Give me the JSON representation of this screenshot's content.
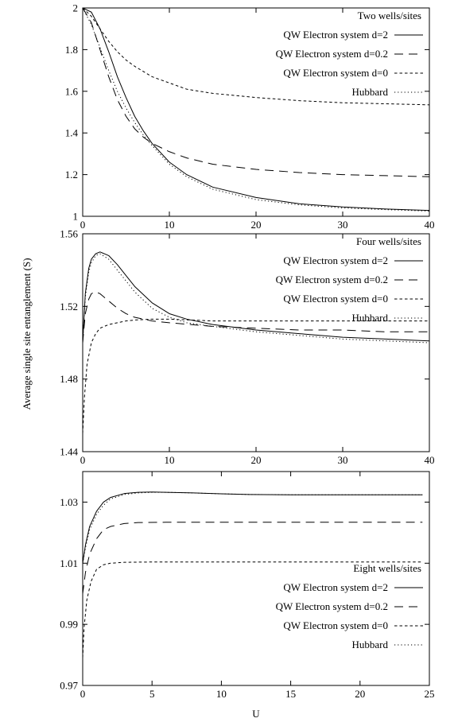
{
  "figure": {
    "ylabel": "Average single site entanglement (S)",
    "xlabel": "U"
  },
  "chart_data": [
    {
      "type": "line",
      "title": "Two wells/sites",
      "xlim": [
        0,
        40
      ],
      "ylim": [
        1,
        2
      ],
      "xticks": [
        0,
        10,
        20,
        30,
        40
      ],
      "yticks": [
        1,
        1.2,
        1.4,
        1.6,
        1.8,
        2
      ],
      "ytick_labels": [
        "1",
        "1.2",
        "1.4",
        "1.6",
        "1.8",
        "2"
      ],
      "legend_position": "top-right",
      "series": [
        {
          "name": "QW Electron system d=2",
          "style": "solid",
          "x": [
            0,
            1,
            2,
            3,
            4,
            5,
            6,
            7,
            8,
            10,
            12,
            15,
            20,
            25,
            30,
            35,
            40
          ],
          "y": [
            2.0,
            1.98,
            1.9,
            1.79,
            1.67,
            1.57,
            1.48,
            1.41,
            1.35,
            1.26,
            1.2,
            1.14,
            1.09,
            1.06,
            1.045,
            1.035,
            1.028
          ]
        },
        {
          "name": "QW Electron system d=0.2",
          "style": "long-dash",
          "x": [
            0,
            1,
            2,
            3,
            4,
            5,
            6,
            7,
            8,
            10,
            12,
            15,
            20,
            25,
            30,
            35,
            40
          ],
          "y": [
            2.0,
            1.93,
            1.8,
            1.67,
            1.56,
            1.48,
            1.42,
            1.38,
            1.35,
            1.31,
            1.28,
            1.25,
            1.225,
            1.21,
            1.2,
            1.195,
            1.19
          ]
        },
        {
          "name": "QW Electron system d=0",
          "style": "short-dash",
          "x": [
            0,
            1,
            2,
            3,
            4,
            5,
            6,
            8,
            10,
            12,
            15,
            20,
            25,
            30,
            35,
            40
          ],
          "y": [
            2.0,
            1.96,
            1.9,
            1.84,
            1.79,
            1.75,
            1.72,
            1.67,
            1.64,
            1.61,
            1.59,
            1.57,
            1.555,
            1.545,
            1.54,
            1.535
          ]
        },
        {
          "name": "Hubbard",
          "style": "dotted",
          "x": [
            0,
            1,
            2,
            3,
            4,
            5,
            6,
            7,
            8,
            10,
            12,
            15,
            20,
            25,
            30,
            35,
            40
          ],
          "y": [
            2.0,
            1.92,
            1.81,
            1.7,
            1.6,
            1.52,
            1.45,
            1.39,
            1.34,
            1.25,
            1.19,
            1.13,
            1.08,
            1.055,
            1.04,
            1.032,
            1.025
          ]
        }
      ]
    },
    {
      "type": "line",
      "title": "Four wells/sites",
      "xlim": [
        0,
        40
      ],
      "ylim": [
        1.44,
        1.56
      ],
      "xticks": [
        0,
        10,
        20,
        30,
        40
      ],
      "yticks": [
        1.44,
        1.48,
        1.52,
        1.56
      ],
      "ytick_labels": [
        "1.44",
        "1.48",
        "1.52",
        "1.56"
      ],
      "legend_position": "top-right",
      "series": [
        {
          "name": "QW Electron system d=2",
          "style": "solid",
          "x": [
            0,
            0.3,
            0.7,
            1,
            1.5,
            2,
            3,
            4,
            5,
            6,
            8,
            10,
            12,
            15,
            20,
            25,
            30,
            35,
            40
          ],
          "y": [
            1.5,
            1.527,
            1.541,
            1.546,
            1.549,
            1.55,
            1.548,
            1.543,
            1.537,
            1.531,
            1.522,
            1.516,
            1.513,
            1.51,
            1.507,
            1.505,
            1.503,
            1.502,
            1.501
          ]
        },
        {
          "name": "QW Electron system d=0.2",
          "style": "long-dash",
          "x": [
            0,
            0.3,
            0.7,
            1,
            1.5,
            2,
            3,
            4,
            5,
            6,
            8,
            10,
            15,
            20,
            25,
            30,
            35,
            40
          ],
          "y": [
            1.5,
            1.516,
            1.524,
            1.527,
            1.528,
            1.527,
            1.523,
            1.519,
            1.516,
            1.514,
            1.512,
            1.511,
            1.509,
            1.508,
            1.507,
            1.507,
            1.506,
            1.506
          ]
        },
        {
          "name": "QW Electron system d=0",
          "style": "short-dash",
          "x": [
            0,
            0.2,
            0.5,
            1,
            1.5,
            2,
            3,
            4,
            5,
            6,
            8,
            10,
            15,
            20,
            25,
            30,
            35,
            40
          ],
          "y": [
            1.45,
            1.47,
            1.488,
            1.5,
            1.505,
            1.508,
            1.51,
            1.511,
            1.512,
            1.5125,
            1.513,
            1.513,
            1.512,
            1.512,
            1.512,
            1.512,
            1.512,
            1.512
          ]
        },
        {
          "name": "Hubbard",
          "style": "dotted",
          "x": [
            0,
            0.3,
            0.7,
            1,
            1.5,
            2,
            3,
            4,
            5,
            6,
            8,
            10,
            12,
            15,
            20,
            25,
            30,
            35,
            40
          ],
          "y": [
            1.5,
            1.525,
            1.539,
            1.544,
            1.548,
            1.549,
            1.546,
            1.54,
            1.534,
            1.528,
            1.519,
            1.514,
            1.511,
            1.509,
            1.506,
            1.504,
            1.502,
            1.501,
            1.5
          ]
        }
      ]
    },
    {
      "type": "line",
      "title": "Eight wells/sites",
      "xlim": [
        0,
        25
      ],
      "ylim": [
        0.97,
        1.04
      ],
      "xticks": [
        0,
        5,
        10,
        15,
        20,
        25
      ],
      "yticks": [
        0.97,
        0.99,
        1.01,
        1.03
      ],
      "ytick_labels": [
        "0.97",
        "0.99",
        "1.01",
        "1.03"
      ],
      "legend_position": "bottom-right",
      "series": [
        {
          "name": "QW Electron system d=2",
          "style": "solid",
          "x": [
            0,
            0.2,
            0.5,
            1,
            1.5,
            2,
            3,
            4,
            5,
            6,
            8,
            10,
            12,
            15,
            20,
            24.5
          ],
          "y": [
            1.01,
            1.016,
            1.022,
            1.027,
            1.03,
            1.0315,
            1.0328,
            1.0332,
            1.0333,
            1.0332,
            1.033,
            1.0327,
            1.0325,
            1.0324,
            1.0324,
            1.0324
          ]
        },
        {
          "name": "QW Electron system d=0.2",
          "style": "long-dash",
          "x": [
            0,
            0.2,
            0.5,
            1,
            1.5,
            2,
            3,
            4,
            6,
            8,
            10,
            15,
            20,
            24.5
          ],
          "y": [
            1.0,
            1.007,
            1.013,
            1.018,
            1.021,
            1.022,
            1.023,
            1.0233,
            1.0234,
            1.0234,
            1.0234,
            1.0234,
            1.0234,
            1.0234
          ]
        },
        {
          "name": "QW Electron system d=0",
          "style": "short-dash",
          "x": [
            0,
            0.1,
            0.3,
            0.6,
            1,
            1.5,
            2,
            3,
            5,
            8,
            10,
            15,
            20,
            24.5
          ],
          "y": [
            0.979,
            0.989,
            0.998,
            1.004,
            1.008,
            1.0095,
            1.01,
            1.0103,
            1.0104,
            1.0104,
            1.0104,
            1.0104,
            1.0104,
            1.0104
          ]
        },
        {
          "name": "Hubbard",
          "style": "dotted",
          "x": [
            0,
            0.2,
            0.5,
            1,
            1.5,
            2,
            3,
            4,
            5,
            6,
            8,
            10,
            12,
            15,
            20,
            24.5
          ],
          "y": [
            1.01,
            1.015,
            1.021,
            1.026,
            1.029,
            1.031,
            1.0325,
            1.033,
            1.0332,
            1.0332,
            1.033,
            1.0327,
            1.0325,
            1.0324,
            1.0324,
            1.0324
          ]
        }
      ]
    }
  ]
}
